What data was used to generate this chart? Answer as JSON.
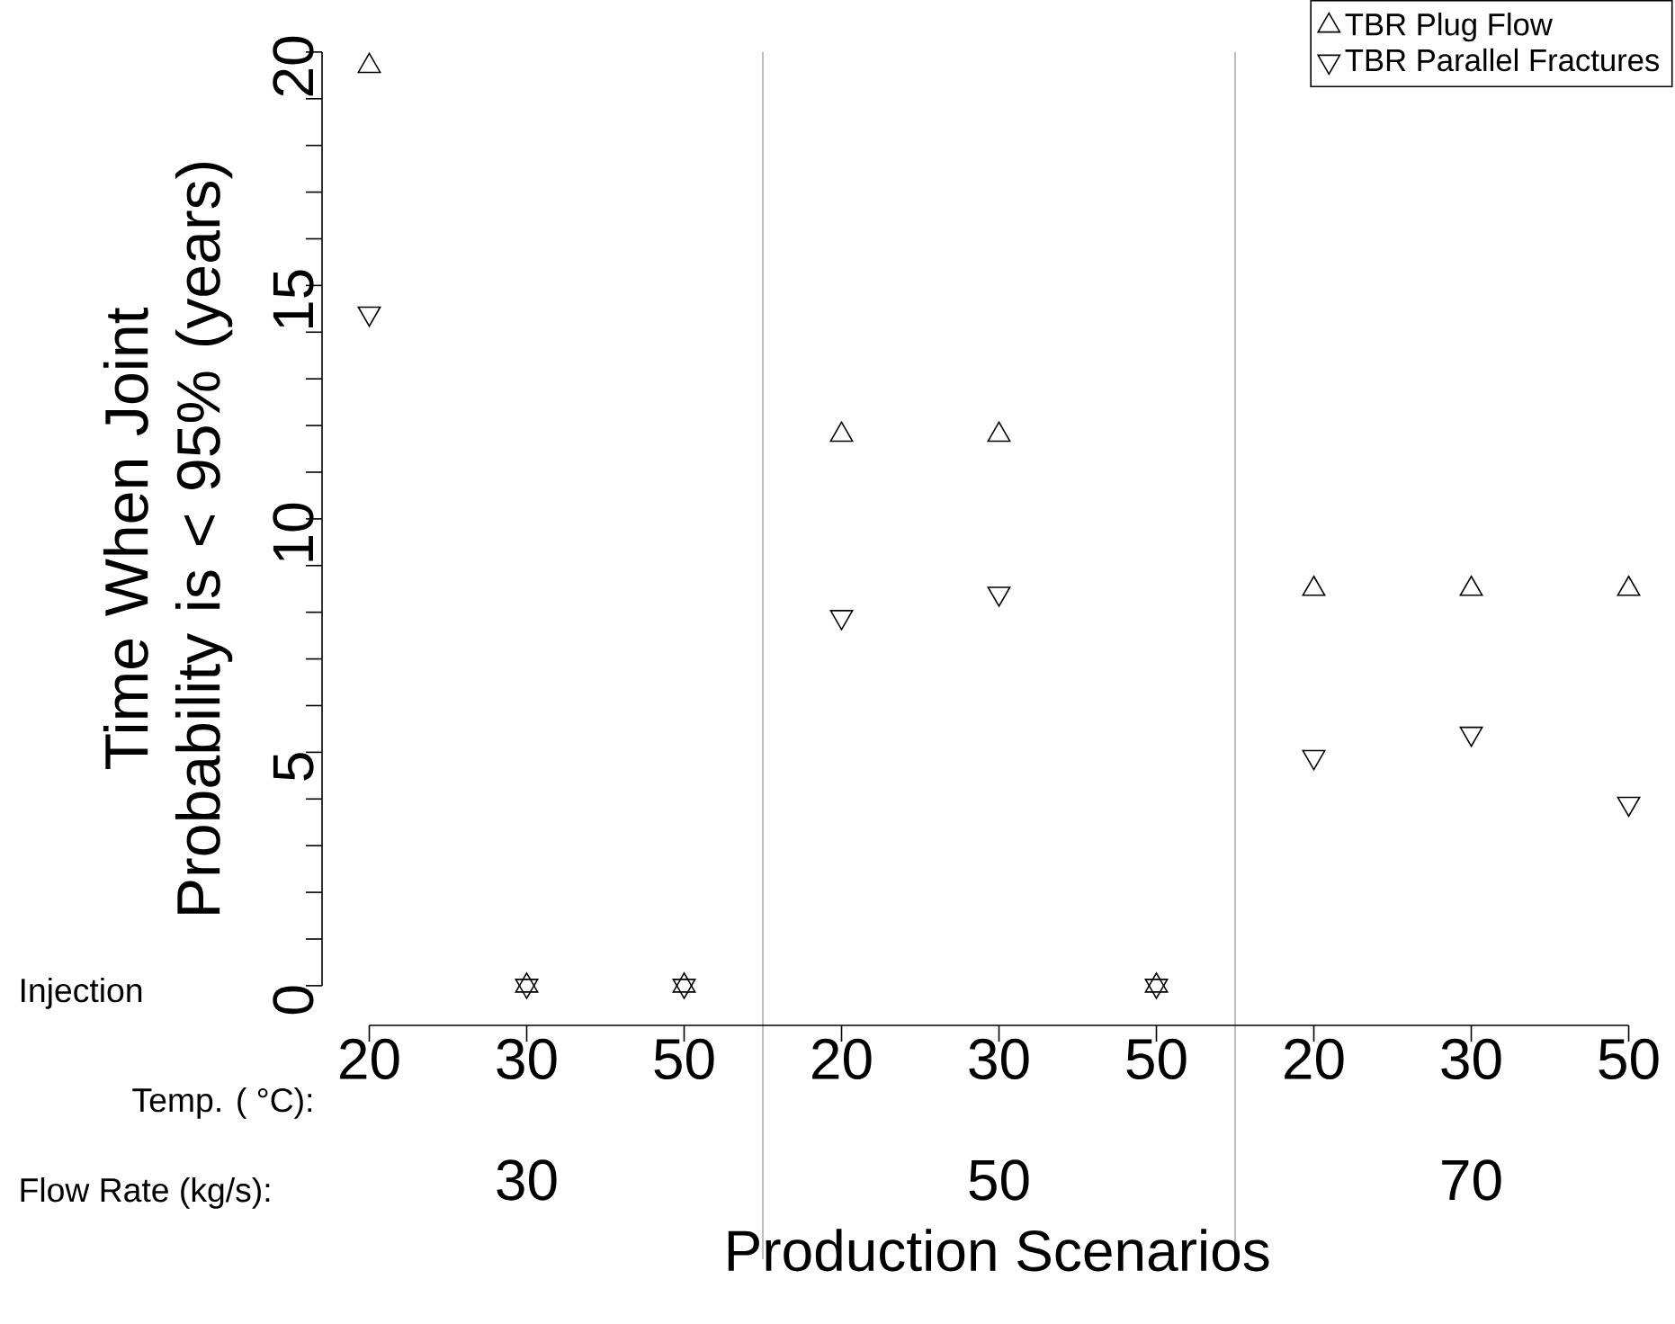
{
  "chart_data": {
    "type": "scatter",
    "categories": [
      "20",
      "30",
      "50",
      "20",
      "30",
      "50",
      "20",
      "30",
      "50"
    ],
    "series": [
      {
        "name": "TBR Plug Flow",
        "color": "#000000",
        "marker": "triangle",
        "values": [
          19.7,
          0,
          0,
          11.8,
          11.8,
          0,
          8.5,
          8.5,
          8.5
        ]
      },
      {
        "name": "TBR Parallel Fractures",
        "color": "#000000",
        "marker": "triangle-down",
        "values": [
          14.4,
          0,
          0,
          7.9,
          8.4,
          0,
          4.9,
          5.4,
          3.9
        ]
      }
    ],
    "xlabel": "Production Scenarios",
    "ylabel": "Time When Joint Probability is < 95% (years)",
    "ylim": [
      -0.85,
      20
    ],
    "yticks": [
      0,
      5,
      10,
      15,
      20
    ],
    "legend": "top right",
    "annotations": [
      "Injection",
      "Temp. ( °C):",
      "Flow Rate (kg/s):",
      "30",
      "50",
      "70"
    ]
  }
}
